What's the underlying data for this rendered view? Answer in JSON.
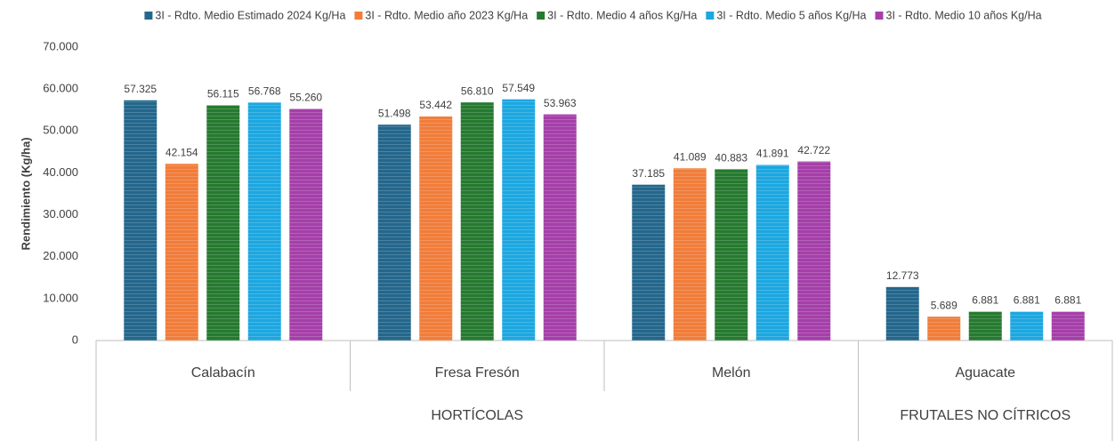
{
  "chart_data": {
    "type": "bar",
    "y_label": "Rendimiento (Kg/ha)",
    "categories": [
      "Calabacín",
      "Fresa Fresón",
      "Melón",
      "Aguacate"
    ],
    "category_groups": [
      "HORTÍCOLAS",
      "HORTÍCOLAS",
      "HORTÍCOLAS",
      "FRUTALES NO CÍTRICOS"
    ],
    "series": [
      {
        "name": "3I - Rdto. Medio Estimado 2024 Kg/Ha",
        "color": "#24678c",
        "values": [
          57325,
          51498,
          37185,
          12773
        ],
        "value_labels": [
          "57.325",
          "51.498",
          "37.185",
          "12.773"
        ]
      },
      {
        "name": "3I - Rdto. Medio año 2023 Kg/Ha",
        "color": "#f07d3a",
        "values": [
          42154,
          53442,
          41089,
          5689
        ],
        "value_labels": [
          "42.154",
          "53.442",
          "41.089",
          "5.689"
        ]
      },
      {
        "name": "3I - Rdto. Medio 4 años Kg/Ha",
        "color": "#267a30",
        "values": [
          56115,
          56810,
          40883,
          6881
        ],
        "value_labels": [
          "56.115",
          "56.810",
          "40.883",
          "6.881"
        ]
      },
      {
        "name": "3I - Rdto. Medio 5 años Kg/Ha",
        "color": "#1da7e0",
        "values": [
          56768,
          57549,
          41891,
          6881
        ],
        "value_labels": [
          "56.768",
          "57.549",
          "41.891",
          "6.881"
        ]
      },
      {
        "name": "3I - Rdto. Medio 10 años Kg/Ha",
        "color": "#a53fa9",
        "values": [
          55260,
          53963,
          42722,
          6881
        ],
        "value_labels": [
          "55.260",
          "53.963",
          "42.722",
          "6.881"
        ]
      }
    ],
    "ylim": [
      0,
      70000
    ],
    "yticks": [
      0,
      {
        "value": 10000,
        "label": "10.000"
      },
      {
        "value": 20000,
        "label": "20.000"
      },
      {
        "value": 30000,
        "label": "30.000"
      },
      {
        "value": 40000,
        "label": "40.000"
      },
      {
        "value": 50000,
        "label": "50.000"
      },
      {
        "value": 60000,
        "label": "60.000"
      },
      {
        "value": 70000,
        "label": "70.000"
      }
    ],
    "grid": false,
    "legend": "top"
  }
}
